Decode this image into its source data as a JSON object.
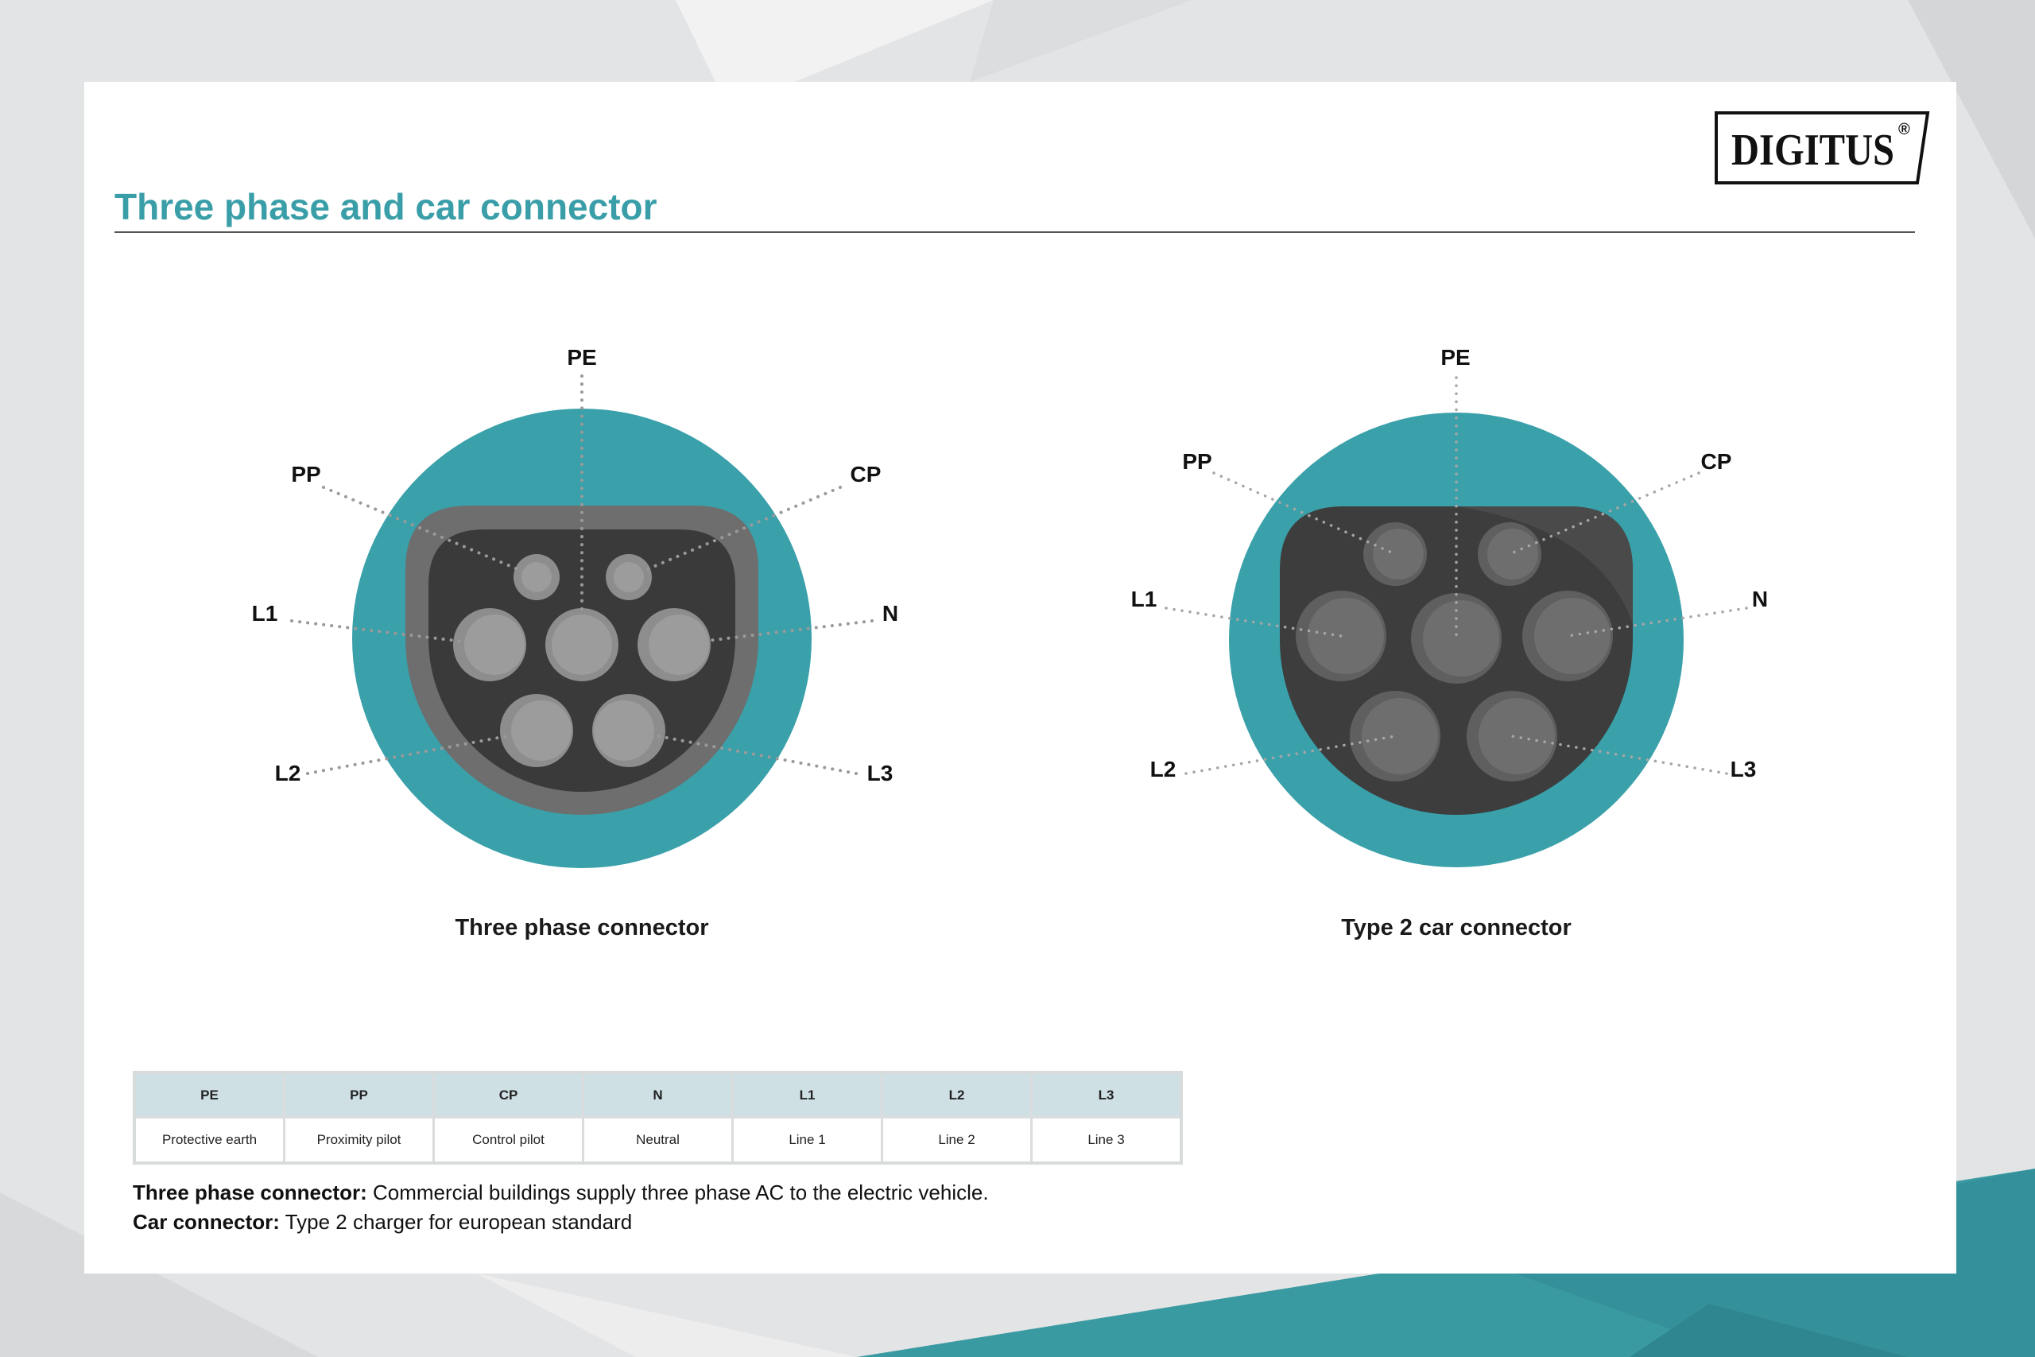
{
  "header": {
    "title": "Three phase and car connector",
    "logo": "DIGITUS",
    "logo_mark": "®"
  },
  "colors": {
    "accent": "#3a9ea8",
    "connector_body": "#3aa0aa",
    "socket_dark": "#3a3a3a",
    "pin_grey": "#8c8c8c",
    "table_header": "#cfe0e5"
  },
  "diagrams": [
    {
      "caption": "Three phase connector",
      "labels": {
        "PE": "PE",
        "PP": "PP",
        "CP": "CP",
        "L1": "L1",
        "N": "N",
        "L2": "L2",
        "L3": "L3"
      }
    },
    {
      "caption": "Type 2 car connector",
      "labels": {
        "PE": "PE",
        "PP": "PP",
        "CP": "CP",
        "L1": "L1",
        "N": "N",
        "L2": "L2",
        "L3": "L3"
      }
    }
  ],
  "legend": {
    "headers": [
      "PE",
      "PP",
      "CP",
      "N",
      "L1",
      "L2",
      "L3"
    ],
    "values": [
      "Protective earth",
      "Proximity pilot",
      "Control pilot",
      "Neutral",
      "Line 1",
      "Line 2",
      "Line 3"
    ]
  },
  "notes": [
    {
      "term": "Three phase connector:",
      "text": " Commercial buildings supply three phase AC to the electric vehicle."
    },
    {
      "term": "Car connector:",
      "text": " Type 2 charger for european standard"
    }
  ]
}
